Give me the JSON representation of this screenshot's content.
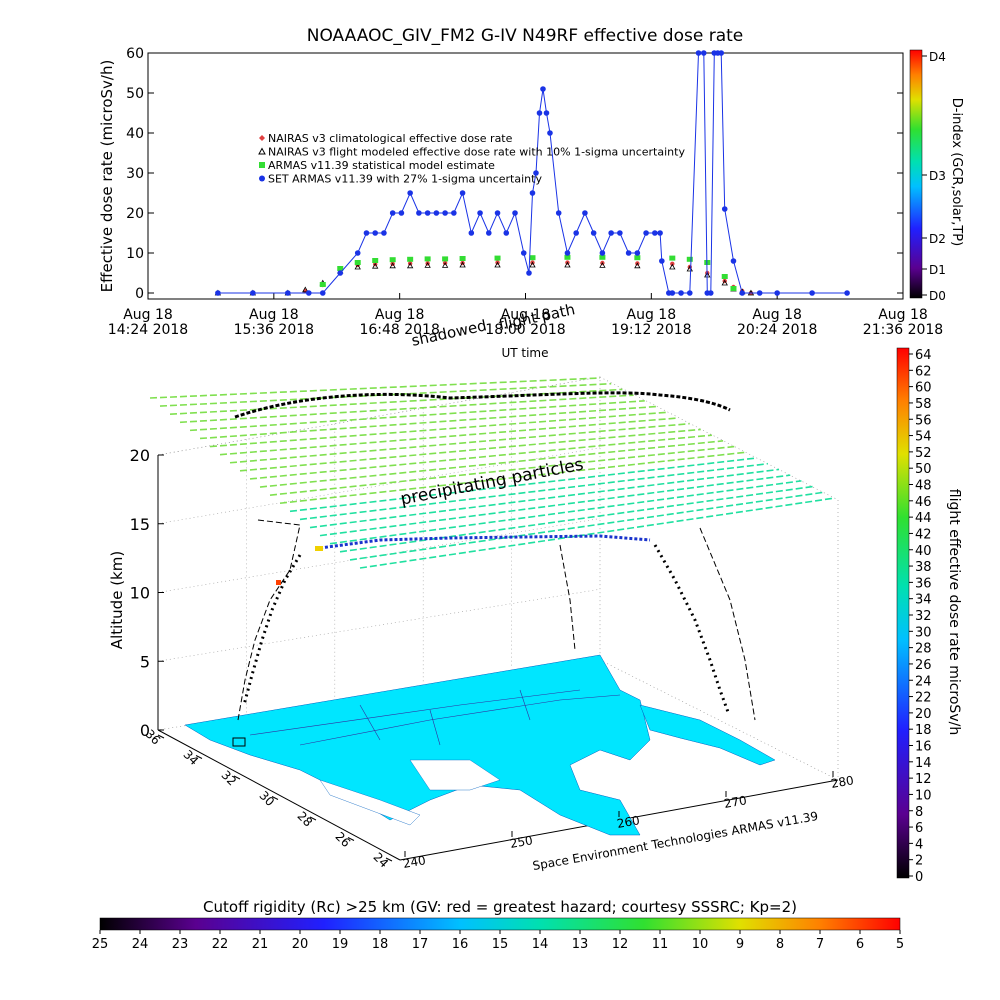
{
  "chart_data": [
    {
      "type": "line",
      "title": "NOAAAOC_GIV_FM2 G-IV   N49RF  effective dose rate",
      "ylabel": "Effective dose rate (microSv/h)",
      "xlabel": "UT time",
      "ylim": [
        0,
        60
      ],
      "yticks": [
        "0",
        "10",
        "20",
        "30",
        "40",
        "50",
        "60"
      ],
      "xticks": [
        {
          "line1": "Aug 18",
          "line2": "14:24 2018",
          "minutes": 0
        },
        {
          "line1": "Aug 18",
          "line2": "15:36 2018",
          "minutes": 72
        },
        {
          "line1": "Aug 18",
          "line2": "16:48 2018",
          "minutes": 144
        },
        {
          "line1": "Aug 18",
          "line2": "18:00 2018",
          "minutes": 216
        },
        {
          "line1": "Aug 18",
          "line2": "19:12 2018",
          "minutes": 288
        },
        {
          "line1": "Aug 18",
          "line2": "20:24 2018",
          "minutes": 360
        },
        {
          "line1": "Aug 18",
          "line2": "21:36 2018",
          "minutes": 432
        }
      ],
      "xrange_minutes": [
        0,
        432
      ],
      "legend_placement": "upper-left",
      "annotations": [
        "flight path",
        "shadowed"
      ],
      "series": [
        {
          "name": "NAIRAS v3 climatological effective dose rate",
          "color": "#e04040",
          "x": [
            40,
            60,
            80,
            90,
            100,
            110,
            120,
            130,
            140,
            150,
            160,
            170,
            180,
            200,
            220,
            240,
            260,
            280,
            300,
            310,
            320,
            330,
            335,
            340,
            345
          ],
          "y": [
            0,
            0,
            0,
            0.5,
            2,
            5,
            7,
            7.2,
            7.3,
            7.4,
            7.4,
            7.5,
            7.5,
            7.6,
            7.6,
            7.6,
            7.5,
            7.4,
            7.3,
            6.5,
            5,
            3,
            1.5,
            0.5,
            0
          ]
        },
        {
          "name": "NAIRAS v3 flight modeled effective dose rate with 10% 1-sigma uncertainty",
          "color": "#000000",
          "x": [
            40,
            60,
            80,
            90,
            100,
            110,
            120,
            130,
            140,
            150,
            160,
            170,
            180,
            200,
            220,
            240,
            260,
            280,
            300,
            310,
            320,
            330,
            335,
            340,
            345
          ],
          "y": [
            0,
            0,
            0,
            0.8,
            2.5,
            5.5,
            6.5,
            6.7,
            6.8,
            6.8,
            6.9,
            6.9,
            7,
            7,
            7,
            7,
            6.9,
            6.8,
            6.5,
            6,
            4.5,
            2.5,
            1,
            0.3,
            0
          ]
        },
        {
          "name": "ARMAS v11.39 statistical model estimate",
          "color": "#33dd33",
          "x": [
            100,
            110,
            120,
            130,
            140,
            150,
            160,
            170,
            180,
            200,
            220,
            240,
            260,
            280,
            300,
            310,
            320,
            330,
            335
          ],
          "y": [
            2,
            6,
            7.5,
            8,
            8.2,
            8.3,
            8.4,
            8.4,
            8.5,
            8.6,
            8.7,
            8.8,
            8.8,
            8.7,
            8.6,
            8.3,
            7.5,
            4,
            1
          ]
        },
        {
          "name": "SET ARMAS v11.39 with 27% 1-sigma uncertainty",
          "color": "#1a33e6",
          "x": [
            40,
            60,
            80,
            92,
            100,
            110,
            120,
            125,
            130,
            135,
            140,
            145,
            150,
            155,
            160,
            165,
            170,
            175,
            180,
            185,
            190,
            195,
            200,
            205,
            210,
            215,
            218,
            220,
            222,
            224,
            226,
            228,
            230,
            235,
            240,
            245,
            250,
            255,
            260,
            265,
            270,
            275,
            280,
            285,
            290,
            293,
            294,
            298,
            300,
            305,
            310,
            315,
            318,
            320,
            322,
            324,
            326,
            328,
            330,
            335,
            340,
            350,
            360,
            380,
            400
          ],
          "y": [
            0,
            0,
            0,
            0,
            0,
            5,
            10,
            15,
            15,
            15,
            20,
            20,
            25,
            20,
            20,
            20,
            20,
            20,
            25,
            15,
            20,
            15,
            20,
            15,
            20,
            10,
            5,
            25,
            30,
            45,
            51,
            45,
            40,
            20,
            10,
            15,
            20,
            15,
            10,
            15,
            15,
            10,
            10,
            15,
            15,
            15,
            8,
            0,
            0,
            0,
            0,
            62,
            62,
            0,
            0,
            62,
            62,
            62,
            21,
            8,
            0,
            0,
            0,
            0,
            0
          ]
        }
      ]
    },
    {
      "type": "scatter",
      "title": "",
      "zlabel": "Altitude (km)",
      "zticks": [
        "0",
        "5",
        "10",
        "15",
        "20"
      ],
      "lat_ticks": [
        "36",
        "34",
        "32",
        "30",
        "28",
        "26",
        "24"
      ],
      "lon_ticks": [
        "240",
        "250",
        "260",
        "270",
        "280"
      ],
      "annotations": [
        "precipitating particles"
      ],
      "footer": "Space Environment Technologies ARMAS v11.39"
    }
  ],
  "colorbars": {
    "dindex": {
      "label": "D-index (GCR,solar,TP)",
      "ticks": [
        "D4",
        "D3",
        "D2",
        "D1",
        "D0"
      ]
    },
    "dose": {
      "label": "flight effective dose rate microSv/h",
      "ticks": [
        "64",
        "62",
        "60",
        "58",
        "56",
        "54",
        "52",
        "50",
        "48",
        "46",
        "44",
        "42",
        "40",
        "38",
        "36",
        "34",
        "32",
        "30",
        "28",
        "26",
        "24",
        "22",
        "20",
        "18",
        "16",
        "14",
        "12",
        "10",
        "8",
        "6",
        "4",
        "2",
        "0"
      ]
    },
    "cutoff": {
      "title": "Cutoff rigidity (Rc) >25 km (GV: red = greatest hazard; courtesy SSSRC; Kp=2)",
      "ticks": [
        "25",
        "24",
        "23",
        "22",
        "21",
        "20",
        "19",
        "18",
        "17",
        "16",
        "15",
        "14",
        "13",
        "12",
        "11",
        "10",
        "9",
        "8",
        "7",
        "6",
        "5"
      ]
    }
  },
  "colors": {
    "rainbow": [
      "#000000",
      "#5a0090",
      "#2020ff",
      "#00b0ff",
      "#00e0c0",
      "#20e040",
      "#c0e000",
      "#ffb000",
      "#ff3000",
      "#ff0000"
    ]
  }
}
